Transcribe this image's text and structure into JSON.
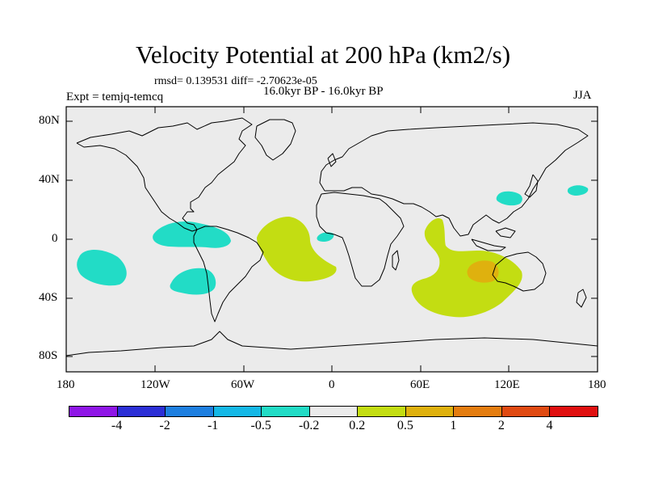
{
  "title": "Velocity Potential at 200 hPa (km2/s)",
  "stats": "rmsd= 0.139531 diff= -2.70623e-05",
  "experiment": "Expt = temjq-temcq",
  "period": "16.0kyr BP - 16.0kyr BP",
  "season": "JJA",
  "y_ticks": [
    "80N",
    "40N",
    "0",
    "40S",
    "80S"
  ],
  "x_ticks": [
    "180",
    "120W",
    "60W",
    "0",
    "60E",
    "120E",
    "180"
  ],
  "colorbar": {
    "colors": [
      "#8f16e6",
      "#2c2fd6",
      "#1e7fe0",
      "#15b8e6",
      "#22dcc6",
      "#ebebeb",
      "#c3dd12",
      "#dfb10e",
      "#e47d10",
      "#e04a12",
      "#e01010"
    ],
    "labels": [
      "-4",
      "-2",
      "-1",
      "-0.5",
      "-0.2",
      "0.2",
      "0.5",
      "1",
      "2",
      "4"
    ]
  },
  "chart_data": {
    "type": "filled-contour-map",
    "variable": "Velocity Potential at 200 hPa",
    "units": "km2/s",
    "levels": [
      -4,
      -2,
      -1,
      -0.5,
      -0.2,
      0.2,
      0.5,
      1,
      2,
      4
    ],
    "lon_range": [
      -180,
      180
    ],
    "lat_range": [
      -90,
      90
    ],
    "anomalies": [
      {
        "region": "central Pacific near 10S",
        "range": "-0.5 to -0.2",
        "color": "#22dcc6"
      },
      {
        "region": "eastern tropical Pacific near 5N",
        "range": "-0.5 to -0.2",
        "color": "#22dcc6"
      },
      {
        "region": "southeast Pacific near 30S",
        "range": "-0.5 to -0.2",
        "color": "#22dcc6"
      },
      {
        "region": "Gulf of Guinea",
        "range": "-0.5 to -0.2",
        "color": "#22dcc6"
      },
      {
        "region": "East China Sea",
        "range": "-0.5 to -0.2",
        "color": "#22dcc6"
      },
      {
        "region": "northwest Pacific near 40N",
        "range": "-0.5 to -0.2",
        "color": "#22dcc6"
      },
      {
        "region": "tropical Atlantic and South America",
        "range": "0.2 to 0.5",
        "color": "#c3dd12"
      },
      {
        "region": "Indian Ocean",
        "range": "0.2 to 0.5",
        "color": "#c3dd12"
      },
      {
        "region": "eastern Indian Ocean near 20S 100E",
        "range": "0.5 to 1",
        "color": "#dfb10e"
      }
    ]
  }
}
